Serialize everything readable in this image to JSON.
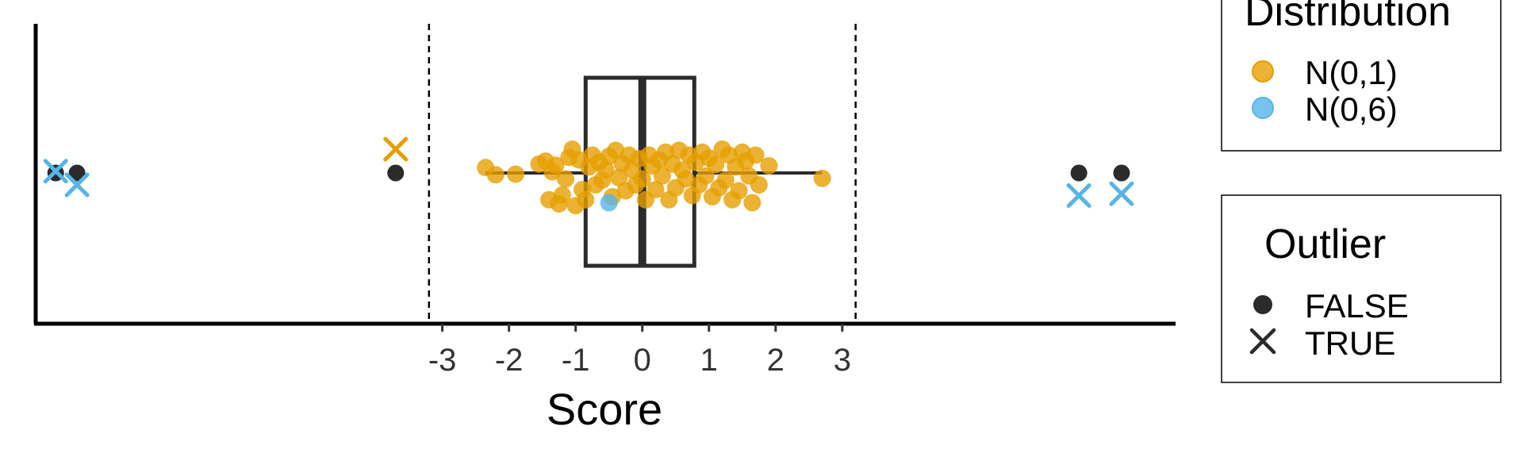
{
  "chart_data": {
    "type": "scatter",
    "xlabel": "Score",
    "x_ticks": [
      -3,
      -2,
      -1,
      0,
      1,
      2,
      3
    ],
    "x_domain": [
      -9.1,
      8.0
    ],
    "reference_lines": [
      -3.2,
      3.2
    ],
    "boxplot": {
      "min": -2.35,
      "q1": -0.85,
      "median": 0,
      "q3": 0.78,
      "max": 2.7
    },
    "colors": {
      "N(0,1)": "#E69F00",
      "N(0,6)": "#56B4E9",
      "box": "#2b2b2b",
      "point_black": "#2b2b2b"
    },
    "series": [
      {
        "name": "N(0,1)",
        "outlier": "FALSE",
        "points": [
          [
            -2.35,
            0.09
          ],
          [
            -2.2,
            -0.03
          ],
          [
            -1.9,
            -0.02
          ],
          [
            -1.55,
            0.15
          ],
          [
            -1.45,
            0.2
          ],
          [
            -1.4,
            -0.45
          ],
          [
            -1.35,
            0.02
          ],
          [
            -1.3,
            0.13
          ],
          [
            -1.25,
            -0.52
          ],
          [
            -1.2,
            -0.37
          ],
          [
            -1.15,
            -0.1
          ],
          [
            -1.1,
            0.26
          ],
          [
            -1.05,
            0.4
          ],
          [
            -1.0,
            -0.55
          ],
          [
            -0.95,
            0.22
          ],
          [
            -0.9,
            -0.28
          ],
          [
            -0.85,
            -0.45
          ],
          [
            -0.8,
            0.1
          ],
          [
            -0.75,
            0.3
          ],
          [
            -0.7,
            -0.2
          ],
          [
            -0.65,
            0.18
          ],
          [
            -0.6,
            -0.12
          ],
          [
            -0.55,
            0.05
          ],
          [
            -0.5,
            0.28
          ],
          [
            -0.45,
            -0.4
          ],
          [
            -0.4,
            0.38
          ],
          [
            -0.35,
            -0.08
          ],
          [
            -0.3,
            0.16
          ],
          [
            -0.25,
            -0.3
          ],
          [
            -0.2,
            0.3
          ],
          [
            -0.15,
            0.05
          ],
          [
            -0.1,
            -0.2
          ],
          [
            -0.05,
            0.24
          ],
          [
            0.0,
            -0.1
          ],
          [
            0.05,
            -0.45
          ],
          [
            0.1,
            0.3
          ],
          [
            0.15,
            0.12
          ],
          [
            0.2,
            -0.28
          ],
          [
            0.25,
            0.22
          ],
          [
            0.3,
            -0.05
          ],
          [
            0.35,
            0.35
          ],
          [
            0.4,
            -0.45
          ],
          [
            0.45,
            0.15
          ],
          [
            0.5,
            -0.25
          ],
          [
            0.55,
            0.38
          ],
          [
            0.6,
            0.05
          ],
          [
            0.65,
            -0.1
          ],
          [
            0.7,
            0.3
          ],
          [
            0.75,
            -0.38
          ],
          [
            0.8,
            0.18
          ],
          [
            0.85,
            -0.2
          ],
          [
            0.9,
            0.35
          ],
          [
            0.95,
            -0.05
          ],
          [
            1.0,
            0.25
          ],
          [
            1.05,
            -0.4
          ],
          [
            1.1,
            0.14
          ],
          [
            1.15,
            -0.25
          ],
          [
            1.2,
            0.4
          ],
          [
            1.25,
            -0.12
          ],
          [
            1.3,
            0.3
          ],
          [
            1.35,
            -0.45
          ],
          [
            1.4,
            0.1
          ],
          [
            1.45,
            -0.3
          ],
          [
            1.5,
            0.35
          ],
          [
            1.55,
            0.2
          ],
          [
            1.6,
            -0.05
          ],
          [
            1.65,
            -0.5
          ],
          [
            1.7,
            0.3
          ],
          [
            1.75,
            -0.2
          ],
          [
            1.9,
            0.12
          ],
          [
            2.7,
            -0.09
          ]
        ]
      },
      {
        "name": "N(0,6)",
        "outlier": "FALSE",
        "points": [
          [
            -0.5,
            -0.5
          ]
        ]
      },
      {
        "name": "N(0,1)",
        "outlier": "TRUE",
        "points": [
          [
            -3.7,
            0.4
          ]
        ]
      },
      {
        "name": "black",
        "outlier": "FALSE",
        "points": [
          [
            -8.8,
            0.0
          ],
          [
            -8.48,
            0.0
          ],
          [
            -3.7,
            0.0
          ],
          [
            6.55,
            0.0
          ],
          [
            7.19,
            0.0
          ]
        ]
      },
      {
        "name": "N(0,6)",
        "outlier": "TRUE",
        "points": [
          [
            -8.8,
            0.03
          ],
          [
            -8.48,
            -0.2
          ],
          [
            6.55,
            -0.38
          ],
          [
            7.19,
            -0.35
          ]
        ]
      }
    ],
    "legend": {
      "distribution": {
        "title": "Distribution",
        "entries": [
          "N(0,1)",
          "N(0,6)"
        ]
      },
      "outlier": {
        "title": "Outlier",
        "entries": [
          "FALSE",
          "TRUE"
        ]
      }
    }
  }
}
